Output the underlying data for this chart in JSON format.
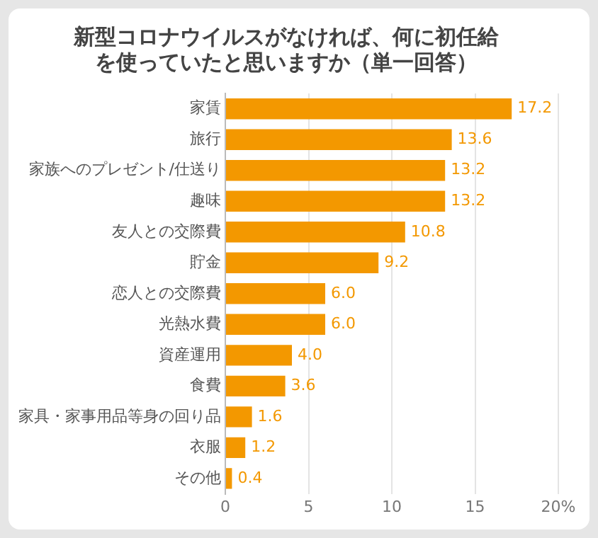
{
  "chart_data": {
    "type": "bar",
    "orientation": "horizontal",
    "title": "新型コロナウイルスがなければ、何に初任給を使っていたと思いますか（単一回答）",
    "categories": [
      "家賃",
      "旅行",
      "家族へのプレゼント/仕送り",
      "趣味",
      "友人との交際費",
      "貯金",
      "恋人との交際費",
      "光熱水費",
      "資産運用",
      "食費",
      "家具・家事用品等身の回り品",
      "衣服",
      "その他"
    ],
    "values": [
      17.2,
      13.6,
      13.2,
      13.2,
      10.8,
      9.2,
      6.0,
      6.0,
      4.0,
      3.6,
      1.6,
      1.2,
      0.4
    ],
    "value_labels": [
      "17.2",
      "13.6",
      "13.2",
      "13.2",
      "10.8",
      "9.2",
      "6.0",
      "6.0",
      "4.0",
      "3.6",
      "1.6",
      "1.2",
      "0.4"
    ],
    "color": "#f39800",
    "xlim": [
      0,
      20
    ],
    "xticks": [
      0,
      5,
      10,
      15,
      {
        "value": 20,
        "label": "20%"
      }
    ],
    "grid": "x",
    "legend": false
  }
}
